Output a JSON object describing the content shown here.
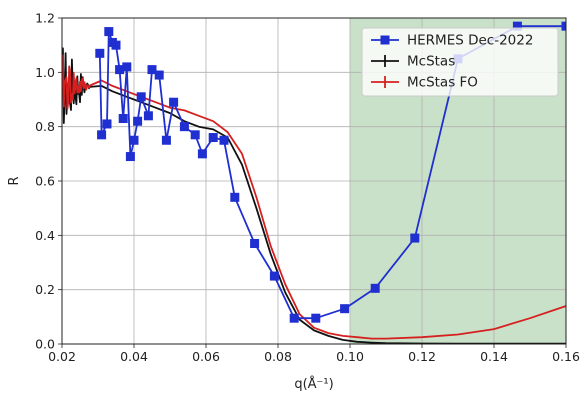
{
  "chart_data": {
    "type": "line",
    "xlabel": "q(Å⁻¹)",
    "ylabel": "R",
    "xlim": [
      0.02,
      0.16
    ],
    "ylim": [
      0.0,
      1.2
    ],
    "xticks": [
      "0.02",
      "0.04",
      "0.06",
      "0.08",
      "0.10",
      "0.12",
      "0.14",
      "0.16"
    ],
    "yticks": [
      "0.0",
      "0.2",
      "0.4",
      "0.6",
      "0.8",
      "1.0",
      "1.2"
    ],
    "grid": true,
    "legend_position": "top-right",
    "shaded_region": {
      "x_from": 0.1,
      "x_to": 0.16,
      "color": "#bfdcbf"
    },
    "series": [
      {
        "name": "HERMES Dec-2022",
        "color": "#1f2fd0",
        "marker": "square",
        "x": [
          0.0305,
          0.031,
          0.0325,
          0.033,
          0.034,
          0.035,
          0.036,
          0.037,
          0.038,
          0.039,
          0.04,
          0.041,
          0.042,
          0.044,
          0.045,
          0.047,
          0.049,
          0.051,
          0.054,
          0.057,
          0.059,
          0.062,
          0.065,
          0.068,
          0.0735,
          0.079,
          0.0845,
          0.0905,
          0.0985,
          0.107,
          0.118,
          0.13,
          0.1465,
          0.16
        ],
        "y": [
          1.07,
          0.77,
          0.81,
          1.15,
          1.11,
          1.1,
          1.01,
          0.83,
          1.02,
          0.69,
          0.75,
          0.82,
          0.91,
          0.84,
          1.01,
          0.99,
          0.75,
          0.89,
          0.8,
          0.77,
          0.7,
          0.76,
          0.75,
          0.54,
          0.37,
          0.25,
          0.095,
          0.095,
          0.13,
          0.205,
          0.39,
          1.05,
          1.17,
          1.17
        ]
      },
      {
        "name": "McStas",
        "color": "#111111",
        "marker": "none",
        "x": [
          0.02,
          0.022,
          0.025,
          0.028,
          0.031,
          0.034,
          0.038,
          0.042,
          0.046,
          0.05,
          0.054,
          0.058,
          0.062,
          0.066,
          0.07,
          0.074,
          0.078,
          0.082,
          0.086,
          0.09,
          0.094,
          0.098,
          0.102,
          0.106,
          0.11,
          0.12,
          0.13,
          0.14,
          0.15,
          0.16
        ],
        "y": [
          0.93,
          0.96,
          0.97,
          0.97,
          0.95,
          0.93,
          0.91,
          0.89,
          0.87,
          0.85,
          0.82,
          0.8,
          0.79,
          0.76,
          0.66,
          0.5,
          0.33,
          0.19,
          0.09,
          0.05,
          0.03,
          0.015,
          0.008,
          0.005,
          0.003,
          0.002,
          0.001,
          0.001,
          0.001,
          0.001
        ]
      },
      {
        "name": "McStas FO",
        "color": "#d62020",
        "marker": "none",
        "x": [
          0.02,
          0.022,
          0.025,
          0.028,
          0.031,
          0.034,
          0.038,
          0.042,
          0.046,
          0.05,
          0.054,
          0.058,
          0.062,
          0.066,
          0.07,
          0.074,
          0.078,
          0.082,
          0.086,
          0.09,
          0.094,
          0.098,
          0.102,
          0.106,
          0.11,
          0.12,
          0.13,
          0.14,
          0.15,
          0.16
        ],
        "y": [
          0.98,
          0.99,
          1.0,
          0.99,
          0.97,
          0.95,
          0.93,
          0.91,
          0.89,
          0.87,
          0.86,
          0.84,
          0.82,
          0.78,
          0.7,
          0.54,
          0.36,
          0.22,
          0.11,
          0.06,
          0.04,
          0.03,
          0.025,
          0.02,
          0.02,
          0.025,
          0.035,
          0.055,
          0.095,
          0.14
        ]
      }
    ]
  }
}
